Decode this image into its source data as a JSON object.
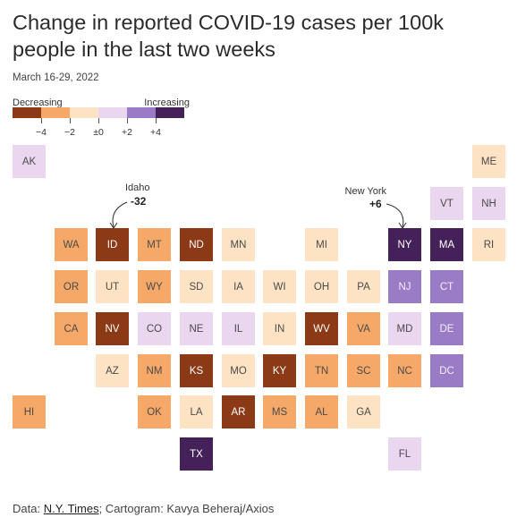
{
  "header": {
    "title": "Change in reported COVID-19 cases per 100k people in the last two weeks",
    "subtitle": "March 16-29, 2022"
  },
  "legend": {
    "decreasing_label": "Decreasing",
    "increasing_label": "Increasing",
    "colors": [
      "#8c3a16",
      "#f5a868",
      "#fde3c4",
      "#ead6ef",
      "#9a7cc6",
      "#442158"
    ],
    "ticks": [
      "−4",
      "−2",
      "±0",
      "+2",
      "+4"
    ]
  },
  "annotations": [
    {
      "label": "Idaho",
      "value": "-32"
    },
    {
      "label": "New York",
      "value": "+6"
    }
  ],
  "chart_data": {
    "type": "tile cartogram",
    "title": "Change in reported COVID-19 cases per 100k people in the last two weeks",
    "subtitle": "March 16-29, 2022",
    "bins": [
      {
        "bin": 0,
        "range": "below −4"
      },
      {
        "bin": 1,
        "range": "−4 to −2"
      },
      {
        "bin": 2,
        "range": "−2 to ±0"
      },
      {
        "bin": 3,
        "range": "±0 to +2"
      },
      {
        "bin": 4,
        "range": "+2 to +4"
      },
      {
        "bin": 5,
        "range": "above +4"
      }
    ],
    "states": [
      {
        "state": "AK",
        "col": 0,
        "row": 0,
        "bin": 3
      },
      {
        "state": "ME",
        "col": 11,
        "row": 0,
        "bin": 2
      },
      {
        "state": "VT",
        "col": 10,
        "row": 1,
        "bin": 3
      },
      {
        "state": "NH",
        "col": 11,
        "row": 1,
        "bin": 3
      },
      {
        "state": "WA",
        "col": 1,
        "row": 2,
        "bin": 1
      },
      {
        "state": "ID",
        "col": 2,
        "row": 2,
        "bin": 0
      },
      {
        "state": "MT",
        "col": 3,
        "row": 2,
        "bin": 1
      },
      {
        "state": "ND",
        "col": 4,
        "row": 2,
        "bin": 0
      },
      {
        "state": "MN",
        "col": 5,
        "row": 2,
        "bin": 2
      },
      {
        "state": "MI",
        "col": 7,
        "row": 2,
        "bin": 2
      },
      {
        "state": "NY",
        "col": 9,
        "row": 2,
        "bin": 5
      },
      {
        "state": "MA",
        "col": 10,
        "row": 2,
        "bin": 5
      },
      {
        "state": "RI",
        "col": 11,
        "row": 2,
        "bin": 2
      },
      {
        "state": "OR",
        "col": 1,
        "row": 3,
        "bin": 1
      },
      {
        "state": "UT",
        "col": 2,
        "row": 3,
        "bin": 2
      },
      {
        "state": "WY",
        "col": 3,
        "row": 3,
        "bin": 1
      },
      {
        "state": "SD",
        "col": 4,
        "row": 3,
        "bin": 2
      },
      {
        "state": "IA",
        "col": 5,
        "row": 3,
        "bin": 2
      },
      {
        "state": "WI",
        "col": 6,
        "row": 3,
        "bin": 2
      },
      {
        "state": "OH",
        "col": 7,
        "row": 3,
        "bin": 2
      },
      {
        "state": "PA",
        "col": 8,
        "row": 3,
        "bin": 2
      },
      {
        "state": "NJ",
        "col": 9,
        "row": 3,
        "bin": 4
      },
      {
        "state": "CT",
        "col": 10,
        "row": 3,
        "bin": 4
      },
      {
        "state": "CA",
        "col": 1,
        "row": 4,
        "bin": 1
      },
      {
        "state": "NV",
        "col": 2,
        "row": 4,
        "bin": 0
      },
      {
        "state": "CO",
        "col": 3,
        "row": 4,
        "bin": 3
      },
      {
        "state": "NE",
        "col": 4,
        "row": 4,
        "bin": 3
      },
      {
        "state": "IL",
        "col": 5,
        "row": 4,
        "bin": 3
      },
      {
        "state": "IN",
        "col": 6,
        "row": 4,
        "bin": 2
      },
      {
        "state": "WV",
        "col": 7,
        "row": 4,
        "bin": 0
      },
      {
        "state": "VA",
        "col": 8,
        "row": 4,
        "bin": 1
      },
      {
        "state": "MD",
        "col": 9,
        "row": 4,
        "bin": 3
      },
      {
        "state": "DE",
        "col": 10,
        "row": 4,
        "bin": 4
      },
      {
        "state": "AZ",
        "col": 2,
        "row": 5,
        "bin": 2
      },
      {
        "state": "NM",
        "col": 3,
        "row": 5,
        "bin": 1
      },
      {
        "state": "KS",
        "col": 4,
        "row": 5,
        "bin": 0
      },
      {
        "state": "MO",
        "col": 5,
        "row": 5,
        "bin": 2
      },
      {
        "state": "KY",
        "col": 6,
        "row": 5,
        "bin": 0
      },
      {
        "state": "TN",
        "col": 7,
        "row": 5,
        "bin": 1
      },
      {
        "state": "SC",
        "col": 8,
        "row": 5,
        "bin": 1
      },
      {
        "state": "NC",
        "col": 9,
        "row": 5,
        "bin": 1
      },
      {
        "state": "DC",
        "col": 10,
        "row": 5,
        "bin": 4
      },
      {
        "state": "HI",
        "col": 0,
        "row": 6,
        "bin": 1
      },
      {
        "state": "OK",
        "col": 3,
        "row": 6,
        "bin": 1
      },
      {
        "state": "LA",
        "col": 4,
        "row": 6,
        "bin": 2
      },
      {
        "state": "AR",
        "col": 5,
        "row": 6,
        "bin": 0
      },
      {
        "state": "MS",
        "col": 6,
        "row": 6,
        "bin": 1
      },
      {
        "state": "AL",
        "col": 7,
        "row": 6,
        "bin": 1
      },
      {
        "state": "GA",
        "col": 8,
        "row": 6,
        "bin": 2
      },
      {
        "state": "TX",
        "col": 4,
        "row": 7,
        "bin": 5
      },
      {
        "state": "FL",
        "col": 9,
        "row": 7,
        "bin": 3
      }
    ]
  },
  "footer": {
    "source_prefix": "Data: ",
    "source_link": "N.Y. Times",
    "source_suffix": "; Cartogram: Kavya Beheraj/Axios"
  }
}
